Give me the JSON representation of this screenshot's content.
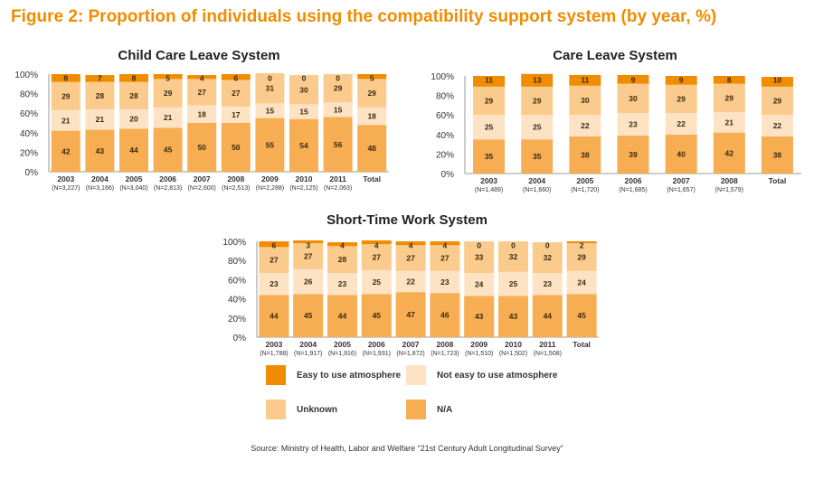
{
  "title": "Figure 2: Proportion of individuals using the compatibility support system (by year, %)",
  "source": "Source: Ministry of Health, Labor and Welfare “21st Century Adult Longitudinal Survey”",
  "colors": {
    "easy": "#f08c00",
    "not_easy": "#fde3c4",
    "unknown": "#fbcb8e",
    "na": "#f7ad52",
    "text": "#333333"
  },
  "legend": [
    {
      "key": "easy",
      "label": "Easy to use atmosphere"
    },
    {
      "key": "not_easy",
      "label": "Not easy to use atmosphere"
    },
    {
      "key": "unknown",
      "label": "Unknown"
    },
    {
      "key": "na",
      "label": "N/A"
    }
  ],
  "chart_data": [
    {
      "type": "bar",
      "stacked": true,
      "title": "Child Care Leave System",
      "categories": [
        "2003",
        "2004",
        "2005",
        "2006",
        "2007",
        "2008",
        "2009",
        "2010",
        "2011",
        "Total"
      ],
      "sublabels": [
        "(N=3,227)",
        "(N=3,166)",
        "(N=3,040)",
        "(N=2,813)",
        "(N=2,600)",
        "(N=2,513)",
        "(N=2,288)",
        "(N=2,125)",
        "(N=2,063)",
        ""
      ],
      "yticks": [
        "0%",
        "20%",
        "40%",
        "60%",
        "80%",
        "100%"
      ],
      "ylim": [
        0,
        100
      ],
      "series": [
        {
          "key": "na",
          "name": "N/A",
          "values": [
            42,
            43,
            44,
            45,
            50,
            50,
            55,
            54,
            56,
            48
          ]
        },
        {
          "key": "not_easy",
          "name": "Not easy to use atmosphere",
          "values": [
            21,
            21,
            20,
            21,
            18,
            17,
            15,
            15,
            15,
            18
          ]
        },
        {
          "key": "unknown",
          "name": "Unknown",
          "values": [
            29,
            28,
            28,
            29,
            27,
            27,
            31,
            30,
            29,
            29
          ]
        },
        {
          "key": "easy",
          "name": "Easy to use atmosphere",
          "values": [
            8,
            7,
            8,
            5,
            4,
            6,
            0,
            0,
            0,
            5
          ]
        }
      ]
    },
    {
      "type": "bar",
      "stacked": true,
      "title": "Care Leave System",
      "categories": [
        "2003",
        "2004",
        "2005",
        "2006",
        "2007",
        "2008",
        "Total"
      ],
      "sublabels": [
        "(N=1,489)",
        "(N=1,660)",
        "(N=1,720)",
        "(N=1,685)",
        "(N=1,657)",
        "(N=1,579)",
        ""
      ],
      "yticks": [
        "0%",
        "20%",
        "40%",
        "60%",
        "80%",
        "100%"
      ],
      "ylim": [
        0,
        100
      ],
      "series": [
        {
          "key": "na",
          "name": "N/A",
          "values": [
            35,
            35,
            38,
            39,
            40,
            42,
            38
          ]
        },
        {
          "key": "not_easy",
          "name": "Not easy to use atmosphere",
          "values": [
            25,
            25,
            22,
            23,
            22,
            21,
            22
          ]
        },
        {
          "key": "unknown",
          "name": "Unknown",
          "values": [
            29,
            29,
            30,
            30,
            29,
            29,
            29
          ]
        },
        {
          "key": "easy",
          "name": "Easy to use atmosphere",
          "values": [
            11,
            13,
            11,
            9,
            9,
            8,
            10
          ]
        }
      ]
    },
    {
      "type": "bar",
      "stacked": true,
      "title": "Short-Time Work System",
      "categories": [
        "2003",
        "2004",
        "2005",
        "2006",
        "2007",
        "2008",
        "2009",
        "2010",
        "2011",
        "Total"
      ],
      "sublabels": [
        "(N=1,788)",
        "(N=1,917)",
        "(N=1,916)",
        "(N=1,931)",
        "(N=1,872)",
        "(N=1,723)",
        "(N=1,510)",
        "(N=1,502)",
        "(N=1,508)",
        ""
      ],
      "yticks": [
        "0%",
        "20%",
        "40%",
        "60%",
        "80%",
        "100%"
      ],
      "ylim": [
        0,
        100
      ],
      "series": [
        {
          "key": "na",
          "name": "N/A",
          "values": [
            44,
            45,
            44,
            45,
            47,
            46,
            43,
            43,
            44,
            45
          ]
        },
        {
          "key": "not_easy",
          "name": "Not easy to use atmosphere",
          "values": [
            23,
            26,
            23,
            25,
            22,
            23,
            24,
            25,
            23,
            24
          ]
        },
        {
          "key": "unknown",
          "name": "Unknown",
          "values": [
            27,
            27,
            28,
            27,
            27,
            27,
            33,
            32,
            32,
            29
          ]
        },
        {
          "key": "easy",
          "name": "Easy to use atmosphere",
          "values": [
            6,
            3,
            4,
            4,
            4,
            4,
            0,
            0,
            0,
            2
          ]
        }
      ]
    }
  ]
}
